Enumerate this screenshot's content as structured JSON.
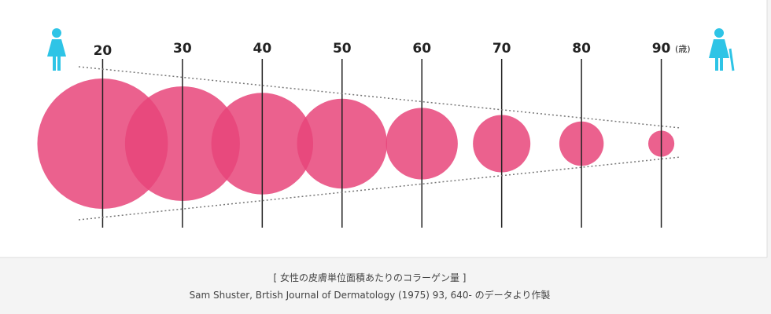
{
  "chart_data": {
    "type": "bubble",
    "x": [
      20,
      30,
      40,
      50,
      60,
      70,
      80,
      90
    ],
    "sizes": [
      100,
      88,
      78,
      69,
      55,
      44,
      34,
      20
    ],
    "color": "#e8457a",
    "xlim": [
      10,
      100
    ],
    "xticks": [
      20,
      30,
      40,
      50,
      60,
      70,
      80,
      90
    ],
    "x_unit": "(歳)",
    "caption": "[ 女性の皮膚単位面積あたりのコラーゲン量 ]",
    "source": "Sam Shuster, Brtish Journal of Dermatology (1975) 93, 640- のデータより作製"
  }
}
